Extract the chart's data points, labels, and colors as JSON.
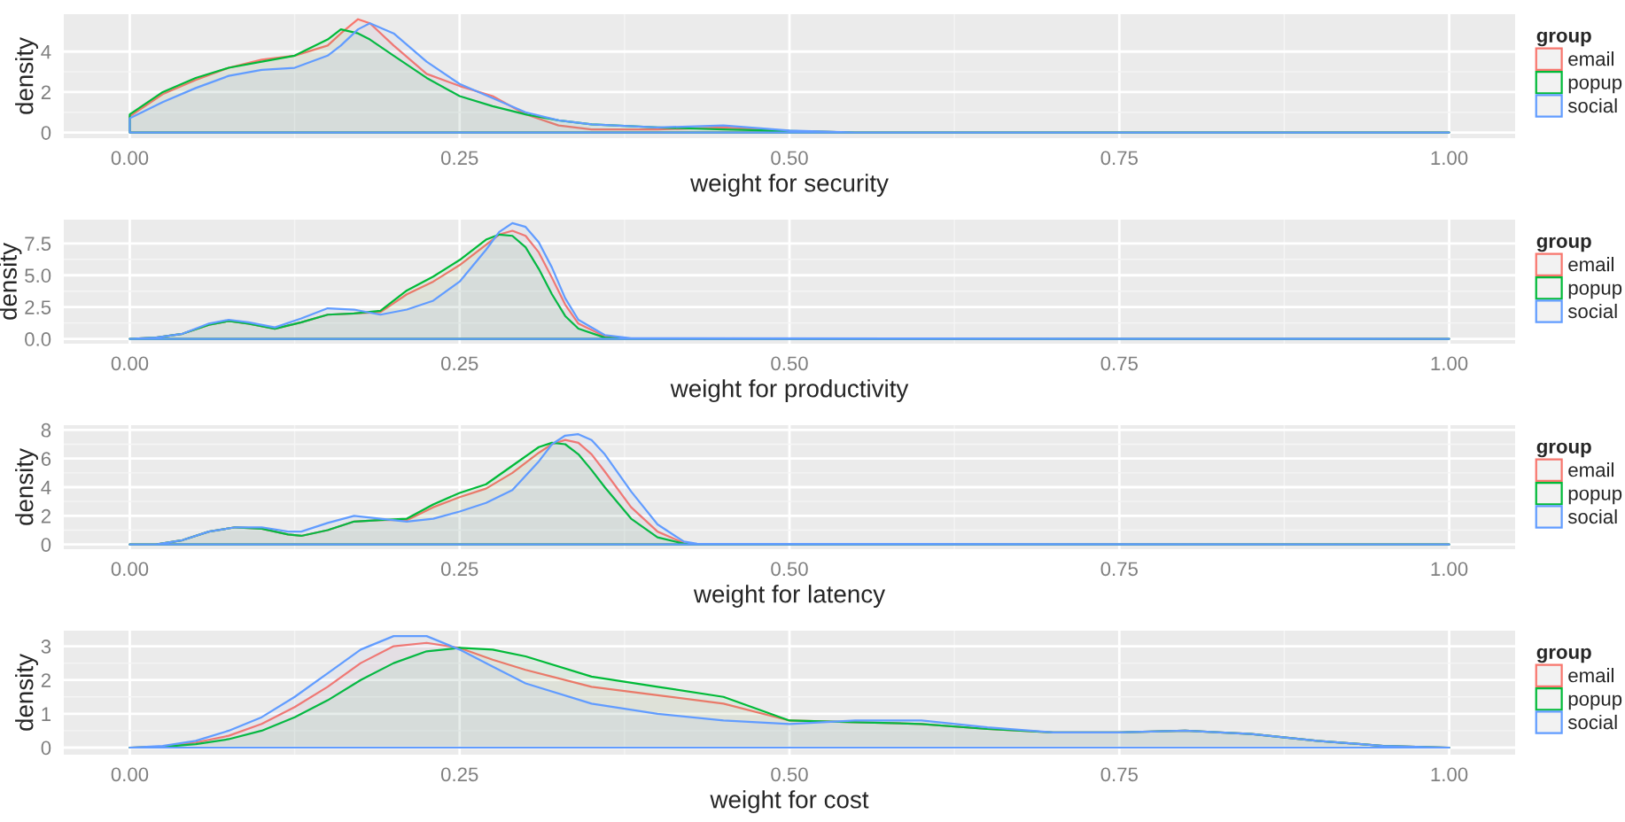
{
  "chart_data": [
    {
      "type": "area",
      "xlabel": "weight for security",
      "ylabel": "density",
      "legend_title": "group",
      "legend": "right",
      "grid": true,
      "x": [
        0,
        0.025,
        0.05,
        0.075,
        0.1,
        0.125,
        0.15,
        0.16,
        0.173,
        0.182,
        0.2,
        0.225,
        0.25,
        0.275,
        0.3,
        0.325,
        0.35,
        0.4,
        0.45,
        0.5,
        0.55,
        1.0
      ],
      "xlim": [
        -0.05,
        1.05
      ],
      "ylim": [
        -0.28,
        5.85
      ],
      "xticks": [
        {
          "value": 0,
          "label": "0.00"
        },
        {
          "value": 0.25,
          "label": "0.25"
        },
        {
          "value": 0.5,
          "label": "0.50"
        },
        {
          "value": 0.75,
          "label": "0.75"
        },
        {
          "value": 1,
          "label": "1.00"
        }
      ],
      "yticks": [
        0,
        2,
        4
      ],
      "series": [
        {
          "name": "email",
          "color": "#f8766d",
          "values": [
            0.8,
            1.9,
            2.6,
            3.2,
            3.6,
            3.8,
            4.3,
            4.9,
            5.6,
            5.4,
            4.3,
            2.9,
            2.3,
            1.8,
            0.9,
            0.35,
            0.15,
            0.15,
            0.25,
            0.08,
            0,
            0
          ]
        },
        {
          "name": "popup",
          "color": "#00ba38",
          "values": [
            0.9,
            2.0,
            2.7,
            3.2,
            3.5,
            3.8,
            4.6,
            5.1,
            4.9,
            4.6,
            3.8,
            2.7,
            1.8,
            1.3,
            0.9,
            0.6,
            0.4,
            0.25,
            0.15,
            0.08,
            0,
            0
          ]
        },
        {
          "name": "social",
          "color": "#619cff",
          "values": [
            0.7,
            1.5,
            2.2,
            2.8,
            3.1,
            3.2,
            3.8,
            4.3,
            5.1,
            5.4,
            4.9,
            3.5,
            2.4,
            1.7,
            1.0,
            0.6,
            0.4,
            0.25,
            0.35,
            0.1,
            0,
            0
          ]
        }
      ]
    },
    {
      "type": "area",
      "xlabel": "weight for productivity",
      "ylabel": "density",
      "legend_title": "group",
      "legend": "right",
      "grid": true,
      "x": [
        0,
        0.02,
        0.04,
        0.06,
        0.075,
        0.09,
        0.11,
        0.13,
        0.15,
        0.17,
        0.19,
        0.21,
        0.23,
        0.25,
        0.27,
        0.28,
        0.29,
        0.3,
        0.31,
        0.32,
        0.33,
        0.34,
        0.36,
        0.38,
        1.0
      ],
      "xlim": [
        -0.05,
        1.05
      ],
      "ylim": [
        -0.38,
        9.37
      ],
      "xticks": [
        {
          "value": 0,
          "label": "0.00"
        },
        {
          "value": 0.25,
          "label": "0.25"
        },
        {
          "value": 0.5,
          "label": "0.50"
        },
        {
          "value": 0.75,
          "label": "0.75"
        },
        {
          "value": 1,
          "label": "1.00"
        }
      ],
      "yticks": [
        {
          "value": 0,
          "label": "0.0"
        },
        {
          "value": 2.5,
          "label": "2.5"
        },
        {
          "value": 5,
          "label": "5.0"
        },
        {
          "value": 7.5,
          "label": "7.5"
        }
      ],
      "series": [
        {
          "name": "email",
          "color": "#f8766d",
          "values": [
            0,
            0.1,
            0.4,
            1.1,
            1.4,
            1.2,
            0.8,
            1.3,
            1.9,
            2.0,
            2.1,
            3.5,
            4.5,
            5.8,
            7.4,
            8.2,
            8.5,
            8.1,
            6.8,
            4.8,
            2.7,
            1.2,
            0.2,
            0,
            0
          ]
        },
        {
          "name": "popup",
          "color": "#00ba38",
          "values": [
            0,
            0.1,
            0.4,
            1.1,
            1.4,
            1.2,
            0.8,
            1.3,
            1.9,
            2.0,
            2.2,
            3.8,
            4.9,
            6.2,
            7.8,
            8.2,
            8.1,
            7.2,
            5.5,
            3.5,
            1.8,
            0.8,
            0.1,
            0,
            0
          ]
        },
        {
          "name": "social",
          "color": "#619cff",
          "values": [
            0,
            0.1,
            0.4,
            1.2,
            1.5,
            1.3,
            0.9,
            1.6,
            2.4,
            2.3,
            1.9,
            2.3,
            3.0,
            4.5,
            7.0,
            8.4,
            9.1,
            8.8,
            7.6,
            5.6,
            3.2,
            1.5,
            0.3,
            0.05,
            0
          ]
        }
      ]
    },
    {
      "type": "area",
      "xlabel": "weight for latency",
      "ylabel": "density",
      "legend_title": "group",
      "legend": "right",
      "grid": true,
      "x": [
        0,
        0.02,
        0.04,
        0.06,
        0.08,
        0.1,
        0.12,
        0.13,
        0.15,
        0.17,
        0.19,
        0.21,
        0.23,
        0.25,
        0.27,
        0.29,
        0.31,
        0.32,
        0.33,
        0.34,
        0.35,
        0.36,
        0.38,
        0.4,
        0.42,
        0.43,
        1.0
      ],
      "xlim": [
        -0.05,
        1.05
      ],
      "ylim": [
        -0.33,
        8.33
      ],
      "xticks": [
        {
          "value": 0,
          "label": "0.00"
        },
        {
          "value": 0.25,
          "label": "0.25"
        },
        {
          "value": 0.5,
          "label": "0.50"
        },
        {
          "value": 0.75,
          "label": "0.75"
        },
        {
          "value": 1,
          "label": "1.00"
        }
      ],
      "yticks": [
        0,
        2,
        4,
        6,
        8
      ],
      "series": [
        {
          "name": "email",
          "color": "#f8766d",
          "values": [
            0,
            0,
            0.3,
            0.9,
            1.2,
            1.1,
            0.7,
            0.6,
            1.0,
            1.6,
            1.7,
            1.7,
            2.6,
            3.3,
            3.9,
            5.0,
            6.4,
            7.0,
            7.3,
            7.1,
            6.3,
            5.1,
            2.6,
            0.9,
            0.1,
            0,
            0
          ]
        },
        {
          "name": "popup",
          "color": "#00ba38",
          "values": [
            0,
            0,
            0.3,
            0.9,
            1.2,
            1.1,
            0.7,
            0.6,
            1.0,
            1.6,
            1.7,
            1.8,
            2.8,
            3.6,
            4.2,
            5.5,
            6.8,
            7.1,
            7.0,
            6.3,
            5.2,
            4.0,
            1.8,
            0.5,
            0.05,
            0,
            0
          ]
        },
        {
          "name": "social",
          "color": "#619cff",
          "values": [
            0,
            0,
            0.3,
            0.9,
            1.2,
            1.2,
            0.9,
            0.9,
            1.5,
            2.0,
            1.8,
            1.6,
            1.8,
            2.3,
            2.9,
            3.8,
            5.8,
            7.0,
            7.6,
            7.7,
            7.3,
            6.3,
            3.7,
            1.4,
            0.2,
            0.05,
            0
          ]
        }
      ]
    },
    {
      "type": "area",
      "xlabel": "weight for cost",
      "ylabel": "density",
      "legend_title": "group",
      "legend": "right",
      "grid": true,
      "x": [
        0,
        0.025,
        0.05,
        0.075,
        0.1,
        0.125,
        0.15,
        0.175,
        0.2,
        0.225,
        0.25,
        0.275,
        0.3,
        0.35,
        0.4,
        0.45,
        0.5,
        0.55,
        0.6,
        0.65,
        0.7,
        0.75,
        0.8,
        0.85,
        0.9,
        0.95,
        1.0
      ],
      "xlim": [
        -0.05,
        1.05
      ],
      "ylim": [
        -0.21,
        3.46
      ],
      "xticks": [
        {
          "value": 0,
          "label": "0.00"
        },
        {
          "value": 0.25,
          "label": "0.25"
        },
        {
          "value": 0.5,
          "label": "0.50"
        },
        {
          "value": 0.75,
          "label": "0.75"
        },
        {
          "value": 1,
          "label": "1.00"
        }
      ],
      "yticks": [
        0,
        1,
        2,
        3
      ],
      "series": [
        {
          "name": "email",
          "color": "#f8766d",
          "values": [
            0,
            0.03,
            0.15,
            0.35,
            0.7,
            1.2,
            1.8,
            2.5,
            3.0,
            3.1,
            2.95,
            2.6,
            2.3,
            1.8,
            1.55,
            1.3,
            0.8,
            0.75,
            0.7,
            0.55,
            0.45,
            0.45,
            0.5,
            0.4,
            0.2,
            0.05,
            0
          ]
        },
        {
          "name": "popup",
          "color": "#00ba38",
          "values": [
            0,
            0.02,
            0.1,
            0.25,
            0.5,
            0.9,
            1.4,
            2.0,
            2.5,
            2.85,
            2.95,
            2.9,
            2.7,
            2.1,
            1.8,
            1.5,
            0.8,
            0.75,
            0.7,
            0.55,
            0.45,
            0.45,
            0.5,
            0.4,
            0.2,
            0.05,
            0
          ]
        },
        {
          "name": "social",
          "color": "#619cff",
          "values": [
            0,
            0.05,
            0.2,
            0.5,
            0.9,
            1.5,
            2.2,
            2.9,
            3.3,
            3.3,
            2.9,
            2.4,
            1.9,
            1.3,
            1.0,
            0.8,
            0.7,
            0.8,
            0.8,
            0.6,
            0.45,
            0.45,
            0.5,
            0.4,
            0.2,
            0.05,
            0
          ]
        }
      ]
    }
  ]
}
